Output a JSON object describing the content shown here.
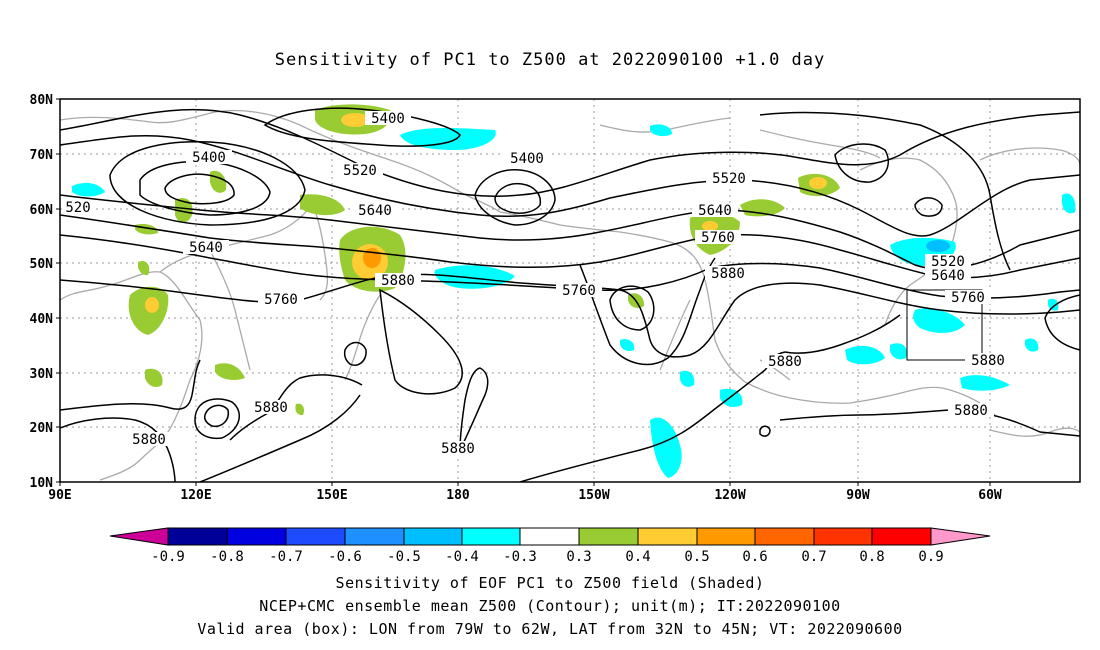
{
  "title": "Sensitivity of PC1 to Z500 at 2022090100 +1.0 day",
  "lat_ticks": [
    "80N",
    "70N",
    "60N",
    "50N",
    "40N",
    "30N",
    "20N",
    "10N"
  ],
  "lon_ticks": [
    "90E",
    "120E",
    "150E",
    "180",
    "150W",
    "120W",
    "90W",
    "60W"
  ],
  "contour_labels": [
    {
      "text": "5400"
    },
    {
      "text": "5400"
    },
    {
      "text": "5400"
    },
    {
      "text": "5520"
    },
    {
      "text": "520"
    },
    {
      "text": "5640"
    },
    {
      "text": "5640"
    },
    {
      "text": "5760"
    },
    {
      "text": "5880"
    },
    {
      "text": "5520"
    },
    {
      "text": "5640"
    },
    {
      "text": "5760"
    },
    {
      "text": "5880"
    },
    {
      "text": "5760"
    },
    {
      "text": "5880"
    },
    {
      "text": "5880"
    },
    {
      "text": "5880"
    },
    {
      "text": "5880"
    },
    {
      "text": "5520"
    },
    {
      "text": "5640"
    },
    {
      "text": "5760"
    },
    {
      "text": "5880"
    },
    {
      "text": "5880"
    }
  ],
  "colorbar": {
    "labels": [
      "-0.9",
      "-0.8",
      "-0.7",
      "-0.6",
      "-0.5",
      "-0.4",
      "-0.3",
      "0.3",
      "0.4",
      "0.5",
      "0.6",
      "0.7",
      "0.8",
      "0.9"
    ],
    "colors": [
      "#000099",
      "#0000e0",
      "#1f4bff",
      "#1e90ff",
      "#00bfff",
      "#00ffff",
      "#ffffff",
      "#99cc33",
      "#ffcc33",
      "#ff9900",
      "#ff6600",
      "#ff3300",
      "#ff0000"
    ],
    "low_arrow_color": "#cc0099",
    "high_arrow_color": "#ff99cc"
  },
  "captions": {
    "line1": "Sensitivity of EOF PC1 to Z500 field (Shaded)",
    "line2": "NCEP+CMC ensemble mean Z500 (Contour); unit(m); IT:2022090100",
    "line3": "Valid area (box): LON from 79W to 62W, LAT from 32N to 45N; VT: 2022090600"
  }
}
